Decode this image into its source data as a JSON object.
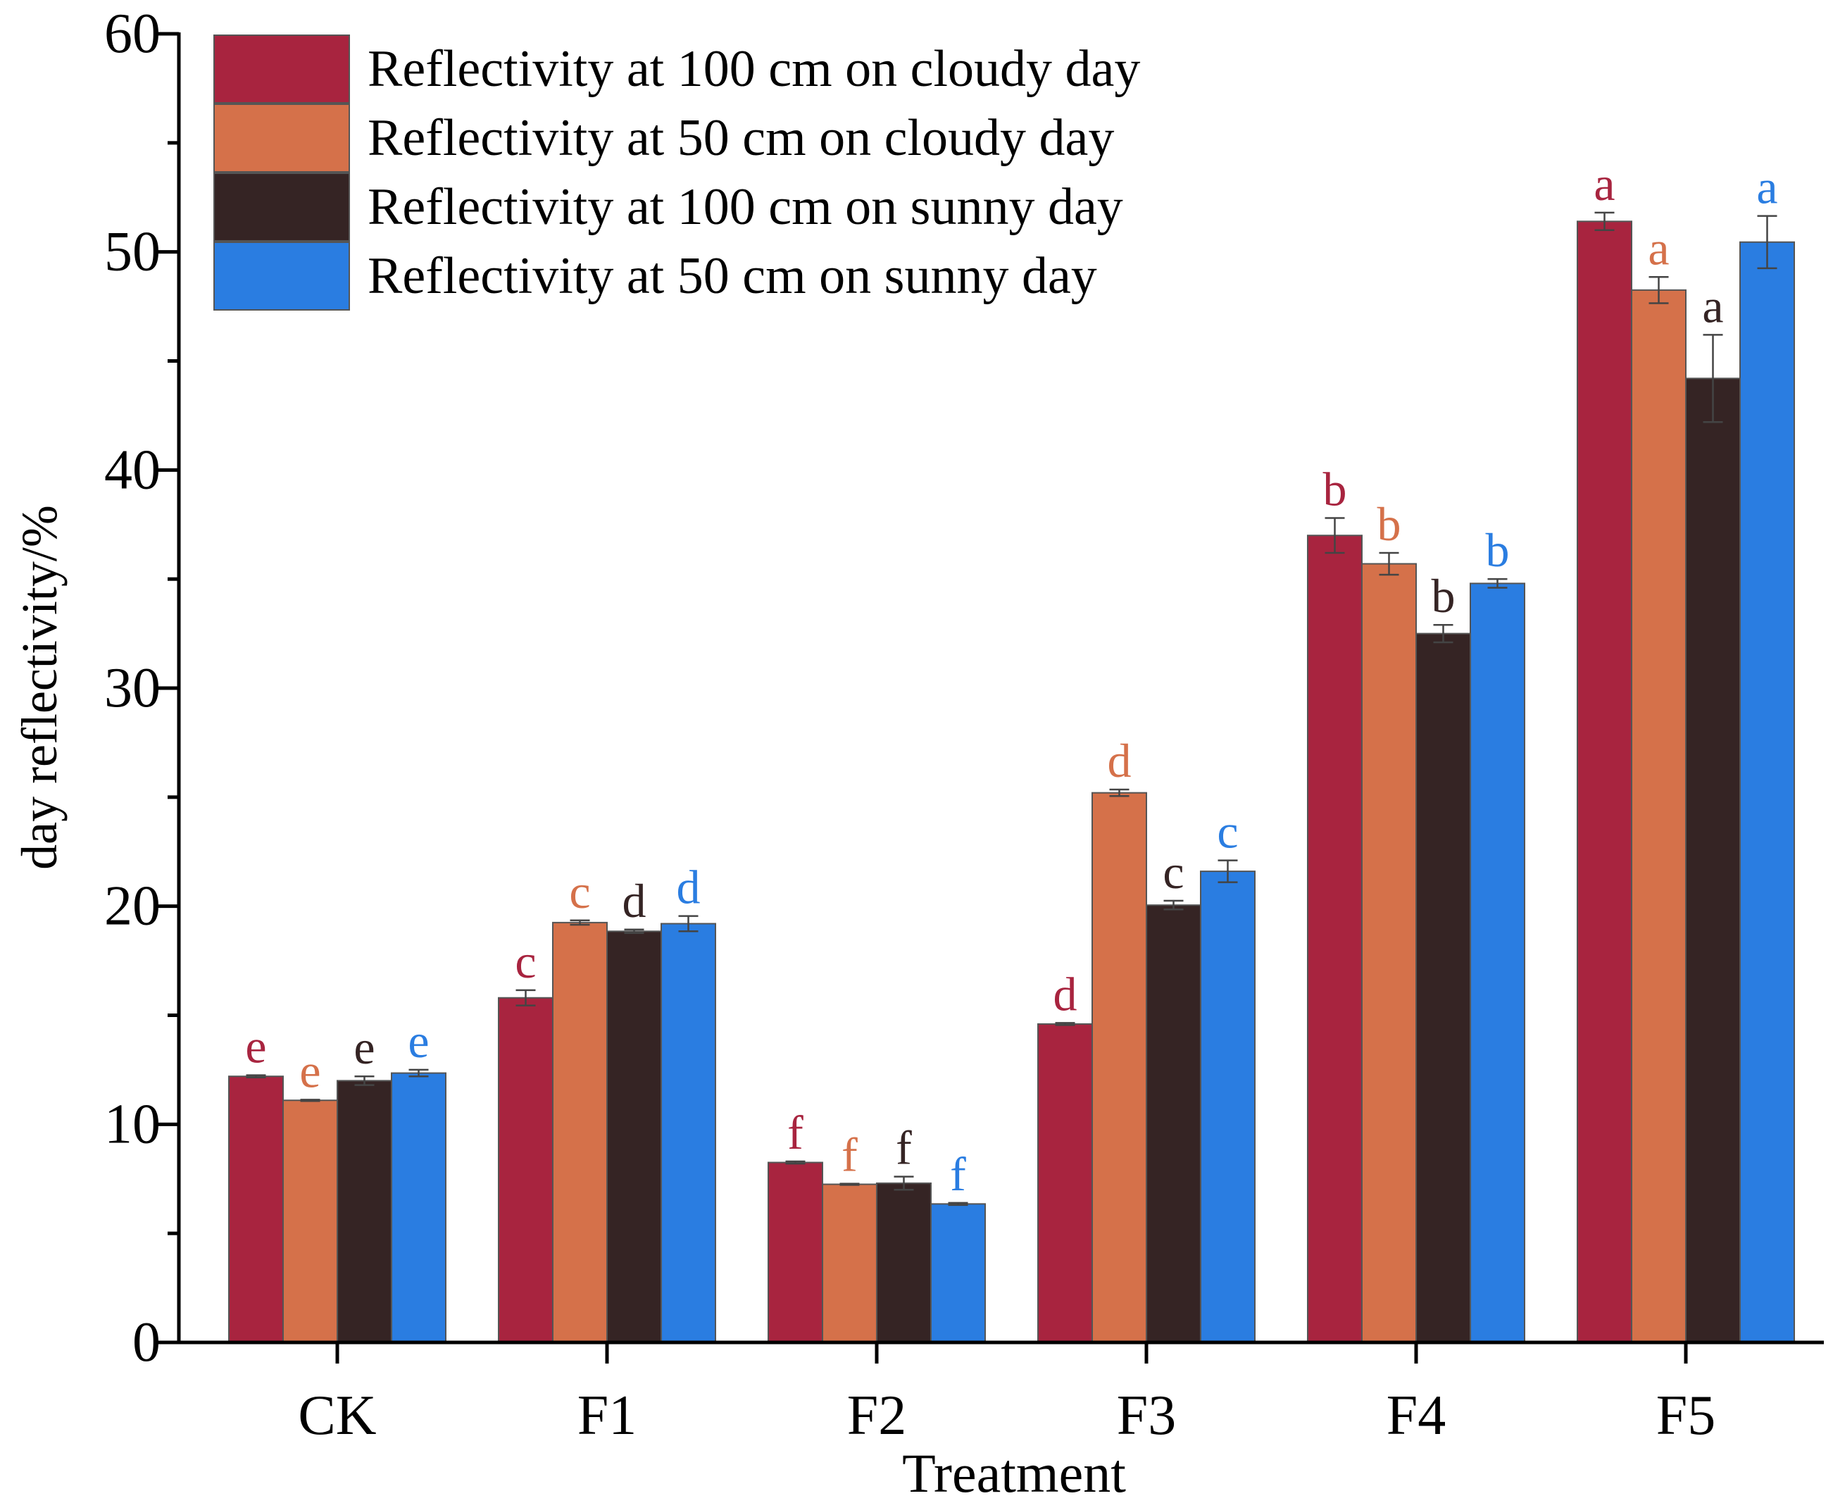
{
  "chart_data": {
    "type": "bar",
    "title": "",
    "xlabel": "Treatment",
    "ylabel": "day reflectivity/%",
    "ylim": [
      0,
      60
    ],
    "yticks": [
      0,
      10,
      20,
      30,
      40,
      50,
      60
    ],
    "categories": [
      "CK",
      "F1",
      "F2",
      "F3",
      "F4",
      "F5"
    ],
    "legend_position": "top-left",
    "series": [
      {
        "name": "Reflectivity at 100 cm on cloudy day",
        "color": "#A8243F",
        "values": [
          12.2,
          15.8,
          8.25,
          14.6,
          37.0,
          51.4
        ],
        "errors": [
          0.05,
          0.35,
          0.05,
          0.05,
          0.8,
          0.4
        ],
        "letters": [
          "e",
          "c",
          "f",
          "d",
          "b",
          "a"
        ]
      },
      {
        "name": "Reflectivity at 50 cm on cloudy day",
        "color": "#D5714A",
        "values": [
          11.1,
          19.25,
          7.25,
          25.2,
          35.7,
          48.25
        ],
        "errors": [
          0.03,
          0.1,
          0.03,
          0.15,
          0.5,
          0.6
        ],
        "letters": [
          "e",
          "c",
          "f",
          "d",
          "b",
          "a"
        ]
      },
      {
        "name": "Reflectivity at 100 cm on sunny day",
        "color": "#352424",
        "values": [
          12.0,
          18.85,
          7.3,
          20.05,
          32.5,
          44.2
        ],
        "errors": [
          0.2,
          0.08,
          0.3,
          0.2,
          0.4,
          2.0
        ],
        "letters": [
          "e",
          "d",
          "f",
          "c",
          "b",
          "a"
        ]
      },
      {
        "name": "Reflectivity at 50 cm on sunny day",
        "color": "#2A7DE1",
        "values": [
          12.35,
          19.2,
          6.35,
          21.6,
          34.8,
          50.45
        ],
        "errors": [
          0.15,
          0.35,
          0.05,
          0.5,
          0.2,
          1.2
        ],
        "letters": [
          "e",
          "d",
          "f",
          "c",
          "b",
          "a"
        ]
      }
    ]
  }
}
